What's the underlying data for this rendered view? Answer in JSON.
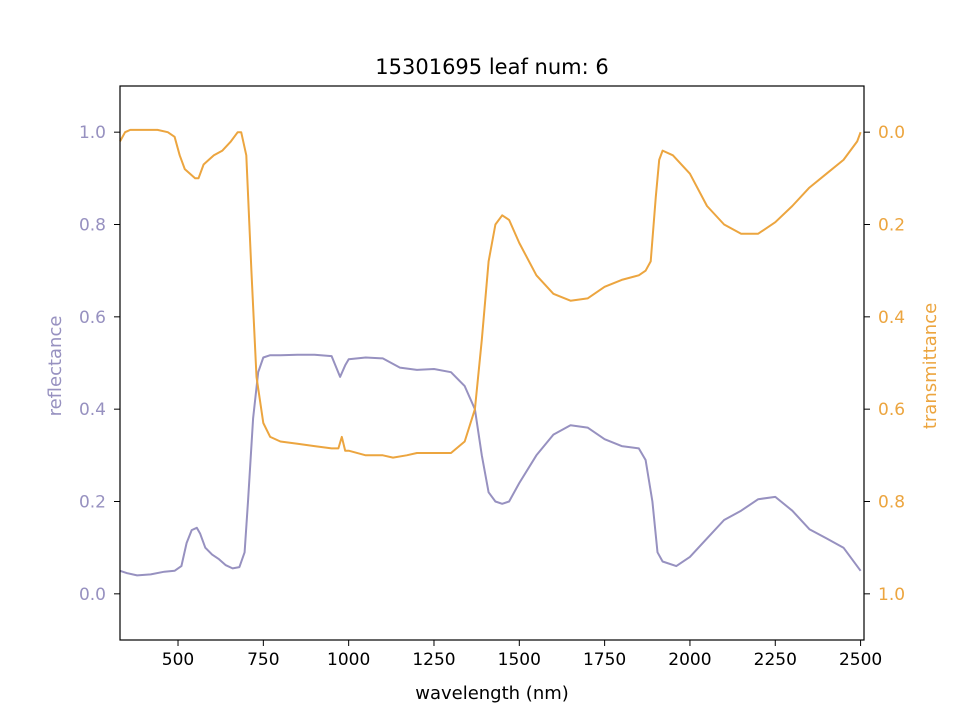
{
  "chart_data": {
    "type": "line",
    "title": "15301695 leaf num: 6",
    "xlabel": "wavelength (nm)",
    "xlim": [
      330,
      2510
    ],
    "x_ticks": [
      500,
      750,
      1000,
      1250,
      1500,
      1750,
      2000,
      2250,
      2500
    ],
    "grid": false,
    "colors": {
      "reflectance": "#9791c0",
      "transmittance": "#eca53f",
      "axis": "#000000"
    },
    "y_left": {
      "label": "reflectance",
      "ylim": [
        -0.1,
        1.1
      ],
      "ticks": [
        "0.0",
        "0.2",
        "0.4",
        "0.6",
        "0.8",
        "1.0"
      ]
    },
    "y_right": {
      "label": "transmittance",
      "ylim": [
        1.1,
        -0.1
      ],
      "inverted": true,
      "ticks": [
        "0.0",
        "0.2",
        "0.4",
        "0.6",
        "0.8",
        "1.0"
      ]
    },
    "series": [
      {
        "axis": "left",
        "x": [
          330,
          350,
          380,
          420,
          460,
          490,
          510,
          525,
          540,
          555,
          565,
          580,
          600,
          620,
          640,
          660,
          680,
          695,
          705,
          720,
          735,
          750,
          770,
          800,
          850,
          900,
          950,
          975,
          990,
          1000,
          1050,
          1100,
          1150,
          1200,
          1250,
          1300,
          1340,
          1370,
          1390,
          1410,
          1430,
          1450,
          1470,
          1500,
          1550,
          1600,
          1650,
          1700,
          1750,
          1800,
          1850,
          1870,
          1890,
          1905,
          1920,
          1960,
          2000,
          2050,
          2100,
          2150,
          2200,
          2250,
          2300,
          2350,
          2400,
          2450,
          2500
        ],
        "y": [
          0.05,
          0.045,
          0.04,
          0.042,
          0.048,
          0.05,
          0.06,
          0.11,
          0.138,
          0.143,
          0.13,
          0.1,
          0.085,
          0.075,
          0.062,
          0.055,
          0.058,
          0.09,
          0.2,
          0.38,
          0.48,
          0.512,
          0.517,
          0.517,
          0.518,
          0.518,
          0.515,
          0.47,
          0.495,
          0.508,
          0.512,
          0.51,
          0.49,
          0.485,
          0.487,
          0.48,
          0.45,
          0.4,
          0.3,
          0.22,
          0.2,
          0.195,
          0.2,
          0.24,
          0.3,
          0.345,
          0.365,
          0.36,
          0.335,
          0.32,
          0.315,
          0.29,
          0.2,
          0.09,
          0.07,
          0.06,
          0.08,
          0.12,
          0.16,
          0.18,
          0.205,
          0.21,
          0.18,
          0.14,
          0.12,
          0.1,
          0.05
        ]
      },
      {
        "axis": "right",
        "x": [
          330,
          345,
          360,
          400,
          440,
          470,
          490,
          505,
          520,
          535,
          550,
          560,
          575,
          590,
          605,
          630,
          655,
          675,
          685,
          700,
          715,
          730,
          750,
          770,
          800,
          850,
          900,
          950,
          970,
          980,
          990,
          1000,
          1050,
          1100,
          1130,
          1170,
          1200,
          1250,
          1300,
          1340,
          1370,
          1390,
          1410,
          1430,
          1450,
          1470,
          1500,
          1550,
          1600,
          1650,
          1700,
          1750,
          1800,
          1850,
          1870,
          1885,
          1900,
          1910,
          1920,
          1950,
          2000,
          2050,
          2100,
          2150,
          2200,
          2250,
          2300,
          2350,
          2400,
          2450,
          2490,
          2500
        ],
        "y": [
          0.02,
          0.0,
          -0.005,
          -0.005,
          -0.005,
          0.0,
          0.01,
          0.05,
          0.08,
          0.09,
          0.1,
          0.1,
          0.07,
          0.06,
          0.05,
          0.04,
          0.02,
          0.0,
          0.0,
          0.05,
          0.3,
          0.53,
          0.63,
          0.66,
          0.67,
          0.675,
          0.68,
          0.685,
          0.685,
          0.66,
          0.69,
          0.69,
          0.7,
          0.7,
          0.705,
          0.7,
          0.695,
          0.695,
          0.695,
          0.67,
          0.6,
          0.45,
          0.28,
          0.2,
          0.18,
          0.19,
          0.24,
          0.31,
          0.35,
          0.365,
          0.36,
          0.335,
          0.32,
          0.31,
          0.3,
          0.28,
          0.14,
          0.06,
          0.04,
          0.05,
          0.09,
          0.16,
          0.2,
          0.22,
          0.22,
          0.195,
          0.16,
          0.12,
          0.09,
          0.06,
          0.02,
          0.0
        ]
      }
    ]
  }
}
